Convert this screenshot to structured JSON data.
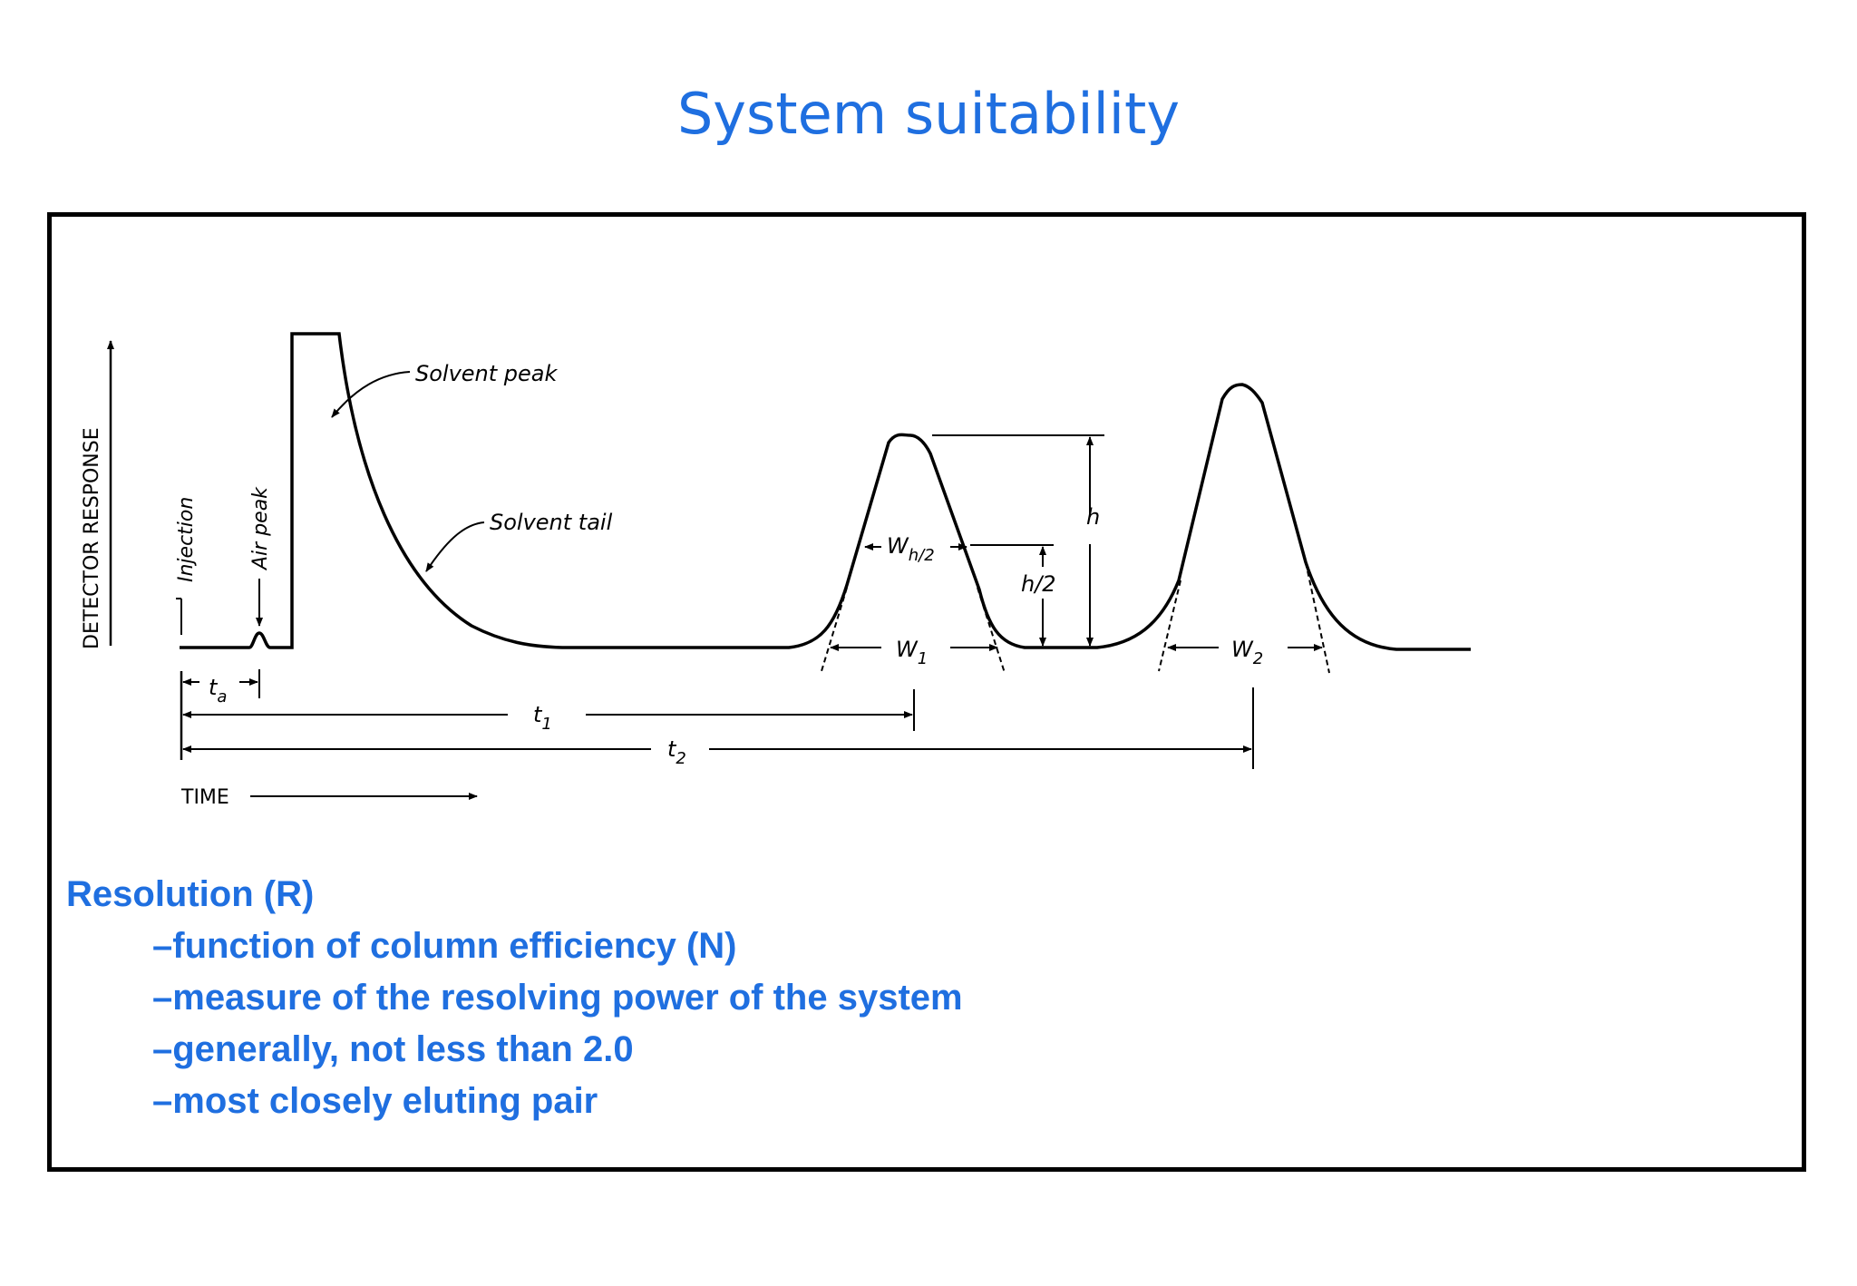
{
  "slide": {
    "title": "System suitability"
  },
  "diagram": {
    "y_axis_label": "DETECTOR RESPONSE",
    "x_axis_label": "TIME",
    "labels": {
      "injection": "Injection",
      "air_peak": "Air peak",
      "solvent_peak": "Solvent peak",
      "solvent_tail": "Solvent tail",
      "ta": "t",
      "ta_sub": "a",
      "t1": "t",
      "t1_sub": "1",
      "t2": "t",
      "t2_sub": "2",
      "w1": "W",
      "w1_sub": "1",
      "w2": "W",
      "w2_sub": "2",
      "wh2": "W",
      "wh2_sub": "h/2",
      "h": "h",
      "h_half": "h/2"
    }
  },
  "notes": {
    "heading": "Resolution (R)",
    "bullets": [
      "–function of column efficiency (N)",
      "–measure of the resolving power of the system",
      "–generally, not less than 2.0",
      "–most closely eluting pair"
    ]
  }
}
